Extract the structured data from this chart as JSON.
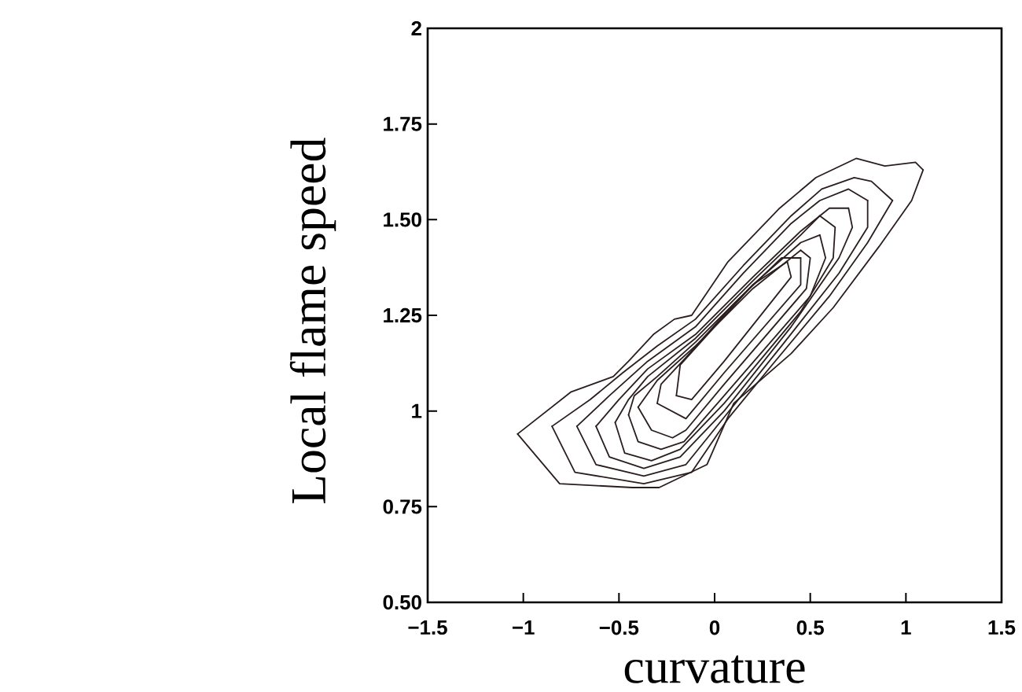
{
  "chart_data": {
    "type": "line",
    "xlabel": "curvature",
    "ylabel": "Local flame speed",
    "xlim": [
      -1.5,
      1.5
    ],
    "ylim": [
      0.5,
      2
    ],
    "xticks": [
      {
        "value": -1.5,
        "label": "−1.5"
      },
      {
        "value": -1,
        "label": "−1"
      },
      {
        "value": -0.5,
        "label": "−0.5"
      },
      0,
      0.5,
      1,
      1.5
    ],
    "yticks": [
      {
        "value": 0.5,
        "label": "0.50"
      },
      0.75,
      1,
      1.25,
      {
        "value": 1.5,
        "label": "1.50"
      },
      1.75,
      2
    ],
    "line_style": "solid",
    "series": [
      {
        "color": "#2b1e1e",
        "x": [
          -1.03,
          -0.81,
          -0.43,
          -0.29,
          -0.04,
          0.1,
          0.4,
          0.62,
          0.86,
          1.03,
          1.09
        ],
        "values": [
          0.94,
          0.81,
          0.8,
          0.8,
          0.86,
          1.02,
          1.15,
          1.27,
          1.43,
          1.55,
          1.63
        ]
      },
      {
        "color": "#2b1e1e",
        "x": [
          1.09,
          1.05,
          0.89,
          0.74,
          0.53,
          0.34,
          0.07,
          -0.12,
          -0.21,
          -0.32,
          -0.45,
          -0.53,
          -0.75,
          -1.03
        ],
        "values": [
          1.63,
          1.65,
          1.64,
          1.66,
          1.61,
          1.53,
          1.39,
          1.25,
          1.24,
          1.2,
          1.13,
          1.09,
          1.05,
          0.94
        ]
      },
      {
        "color": "#2b1e1e",
        "x": [
          -0.85,
          -0.73,
          -0.37,
          -0.12,
          0.07,
          0.3,
          0.6,
          0.8,
          0.93
        ],
        "values": [
          0.96,
          0.84,
          0.81,
          0.84,
          0.98,
          1.12,
          1.3,
          1.44,
          1.55
        ]
      },
      {
        "color": "#2b1e1e",
        "x": [
          0.93,
          0.82,
          0.73,
          0.56,
          0.4,
          0.15,
          -0.1,
          -0.3,
          -0.48,
          -0.65,
          -0.85
        ],
        "values": [
          1.55,
          1.6,
          1.61,
          1.58,
          1.51,
          1.38,
          1.24,
          1.17,
          1.1,
          1.03,
          0.96
        ]
      },
      {
        "color": "#2b1e1e",
        "x": [
          -0.72,
          -0.62,
          -0.37,
          -0.15,
          0.06,
          0.35,
          0.65,
          0.8,
          0.8
        ],
        "values": [
          0.96,
          0.86,
          0.83,
          0.86,
          0.99,
          1.17,
          1.36,
          1.48,
          1.55
        ]
      },
      {
        "color": "#2b1e1e",
        "x": [
          0.8,
          0.7,
          0.55,
          0.4,
          0.15,
          -0.1,
          -0.35,
          -0.55,
          -0.72
        ],
        "values": [
          1.55,
          1.58,
          1.55,
          1.49,
          1.36,
          1.22,
          1.13,
          1.04,
          0.96
        ]
      },
      {
        "color": "#2b1e1e",
        "x": [
          -0.62,
          -0.55,
          -0.37,
          -0.18,
          0.05,
          0.4,
          0.65,
          0.72,
          0.7
        ],
        "values": [
          0.96,
          0.88,
          0.85,
          0.88,
          1.0,
          1.22,
          1.4,
          1.48,
          1.53
        ]
      },
      {
        "color": "#2b1e1e",
        "x": [
          0.7,
          0.6,
          0.45,
          0.2,
          -0.1,
          -0.35,
          -0.5,
          -0.62
        ],
        "values": [
          1.53,
          1.53,
          1.47,
          1.35,
          1.2,
          1.11,
          1.03,
          0.96
        ]
      },
      {
        "color": "#2b1e1e",
        "x": [
          -0.52,
          -0.47,
          -0.33,
          -0.18,
          0.05,
          0.45,
          0.62,
          0.63,
          0.55
        ],
        "values": [
          0.97,
          0.89,
          0.87,
          0.9,
          1.02,
          1.26,
          1.4,
          1.48,
          1.51
        ]
      },
      {
        "color": "#2b1e1e",
        "x": [
          0.55,
          0.45,
          0.2,
          -0.1,
          -0.35,
          -0.45,
          -0.52
        ],
        "values": [
          1.51,
          1.46,
          1.34,
          1.19,
          1.09,
          1.03,
          0.97
        ]
      },
      {
        "color": "#2b1e1e",
        "x": [
          -0.45,
          -0.4,
          -0.28,
          -0.16,
          0.05,
          0.5,
          0.58,
          0.55
        ],
        "values": [
          0.99,
          0.92,
          0.9,
          0.92,
          1.04,
          1.3,
          1.4,
          1.46
        ]
      },
      {
        "color": "#2b1e1e",
        "x": [
          0.55,
          0.45,
          0.2,
          -0.1,
          -0.3,
          -0.42,
          -0.45
        ],
        "values": [
          1.46,
          1.44,
          1.33,
          1.18,
          1.09,
          1.04,
          0.99
        ]
      },
      {
        "color": "#2b1e1e",
        "x": [
          -0.4,
          -0.33,
          -0.22,
          -0.15,
          0.05,
          0.48,
          0.5,
          0.45
        ],
        "values": [
          1.01,
          0.95,
          0.93,
          0.95,
          1.07,
          1.32,
          1.4,
          1.42
        ]
      },
      {
        "color": "#2b1e1e",
        "x": [
          0.45,
          0.2,
          -0.1,
          -0.3,
          -0.4
        ],
        "values": [
          1.42,
          1.32,
          1.17,
          1.08,
          1.01
        ]
      },
      {
        "color": "#2b1e1e",
        "x": [
          -0.3,
          -0.15,
          0.05,
          0.45,
          0.45
        ],
        "values": [
          1.02,
          0.98,
          1.1,
          1.33,
          1.4
        ]
      },
      {
        "color": "#2b1e1e",
        "x": [
          0.45,
          0.35,
          0.1,
          -0.15,
          -0.28,
          -0.3
        ],
        "values": [
          1.4,
          1.4,
          1.28,
          1.14,
          1.07,
          1.02
        ]
      },
      {
        "color": "#2b1e1e",
        "x": [
          -0.2,
          -0.12,
          0.05,
          0.4,
          0.38
        ],
        "values": [
          1.04,
          1.03,
          1.13,
          1.35,
          1.39
        ]
      },
      {
        "color": "#2b1e1e",
        "x": [
          0.38,
          0.2,
          0.0,
          -0.18,
          -0.2
        ],
        "values": [
          1.39,
          1.33,
          1.22,
          1.12,
          1.04
        ]
      }
    ]
  }
}
